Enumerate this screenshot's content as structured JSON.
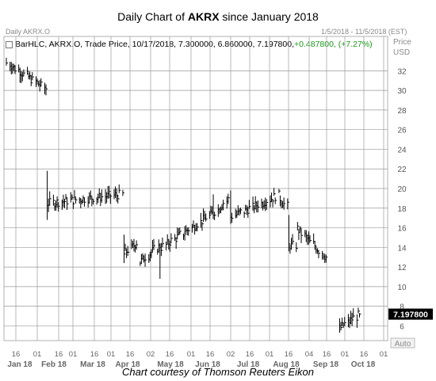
{
  "page": {
    "title_prefix": "Daily Chart of ",
    "title_ticker": "AKRX",
    "title_suffix": " since January 2018",
    "caption": "Chart courtesy of Thomson Reuters Eikon"
  },
  "header": {
    "chart_name": "Daily AKRX.O",
    "date_range": "1/5/2018 - 11/5/2018 (EST)",
    "axis_title_1": "Price",
    "axis_title_2": "USD",
    "info_line_prefix": "BarHLC, AKRX.O, Trade Price, 10/17/2018, 7.300000, 6.860000, 7.197800, ",
    "info_change": "+0.487800, (+7.27%)",
    "auto_label": "Auto"
  },
  "colors": {
    "bars": "#000000",
    "grid": "#9a9a9a",
    "change": "#1a9a1a",
    "last_price_bg": "#000000",
    "last_price_text": "#ffffff"
  },
  "chart_data": {
    "type": "bar",
    "subtype": "ohlc-hlc-daily",
    "title": "Daily Chart of AKRX since January 2018",
    "ylabel": "Price USD",
    "ylim": [
      4.5,
      35.5
    ],
    "yticks": [
      6,
      8,
      10,
      12,
      14,
      16,
      18,
      20,
      22,
      24,
      26,
      28,
      30,
      32
    ],
    "last_price": 7.1978,
    "last_price_label": "7.197800",
    "grid": true,
    "x_tick_labels": [
      "16",
      "01",
      "16",
      "01",
      "16",
      "01",
      "16",
      "02",
      "16",
      "01",
      "16",
      "02",
      "16",
      "01",
      "16",
      "04",
      "16",
      "01",
      "16",
      "01"
    ],
    "x_month_labels": [
      "Jan 18",
      "Feb 18",
      "Mar 18",
      "Apr 18",
      "May 18",
      "Jun 18",
      "Jul 18",
      "Aug 18",
      "Sep 18",
      "Oct 18"
    ],
    "segments": [
      {
        "start": "2018-01-05",
        "end": "2018-02-06",
        "from": 32.8,
        "to": 30.2,
        "low_end": 29.5
      },
      {
        "start": "2018-02-07",
        "end": "2018-04-09",
        "from": 18.5,
        "to": 19.4,
        "spike_high": 21.8,
        "spike_low": 16.8
      },
      {
        "start": "2018-04-10",
        "end": "2018-04-20",
        "from": 13.3,
        "to": 14.5,
        "spike_high": 15.3,
        "spike_low": 12.4
      },
      {
        "start": "2018-04-23",
        "end": "2018-05-09",
        "from": 12.5,
        "to": 14.2,
        "low_end": 10.8
      },
      {
        "start": "2018-05-10",
        "end": "2018-06-20",
        "from": 14.0,
        "to": 17.4
      },
      {
        "start": "2018-06-21",
        "end": "2018-07-03",
        "from": 17.5,
        "to": 18.9,
        "spike_high": 19.4
      },
      {
        "start": "2018-07-05",
        "end": "2018-08-13",
        "from": 17.1,
        "to": 19.3,
        "spike_high": 19.8
      },
      {
        "start": "2018-08-14",
        "end": "2018-08-20",
        "from": 19.0,
        "to": 18.2
      },
      {
        "start": "2018-08-21",
        "end": "2018-08-27",
        "from": 14.2,
        "to": 14.2,
        "spike_high": 17.3,
        "spike_low": 13.6
      },
      {
        "start": "2018-08-28",
        "end": "2018-09-20",
        "from": 15.9,
        "to": 13.0,
        "spike_high": 16.6
      },
      {
        "start": "2018-10-01",
        "end": "2018-10-17",
        "from": 5.7,
        "to": 7.1978,
        "spike_low": 5.3
      }
    ]
  }
}
